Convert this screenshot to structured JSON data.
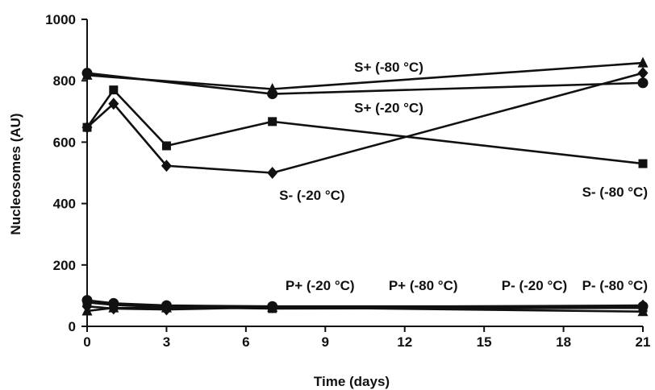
{
  "chart_data": {
    "type": "line",
    "title": "",
    "xlabel": "Time (days)",
    "ylabel": "Nucleosomes (AU)",
    "xlim": [
      0,
      21
    ],
    "ylim": [
      0,
      1000
    ],
    "xticks": [
      0,
      3,
      6,
      9,
      12,
      15,
      18,
      21
    ],
    "yticks": [
      0,
      200,
      400,
      600,
      800,
      1000
    ],
    "xtick_labels": [
      "0",
      "3",
      "6",
      "9",
      "12",
      "15",
      "18",
      "21"
    ],
    "ytick_labels": [
      "0",
      "200",
      "400",
      "600",
      "800",
      "1000"
    ],
    "grid": false,
    "legend": "none",
    "series": [
      {
        "name": "S+ (-80 °C)",
        "marker": "triangle",
        "x": [
          0,
          7,
          21
        ],
        "y": [
          818,
          773,
          858
        ]
      },
      {
        "name": "S+ (-20 °C)",
        "marker": "circle",
        "x": [
          0,
          7,
          21
        ],
        "y": [
          825,
          757,
          793
        ]
      },
      {
        "name": "S- (-80 °C)",
        "marker": "square",
        "x": [
          0,
          1,
          3,
          7,
          21
        ],
        "y": [
          648,
          770,
          588,
          667,
          530
        ]
      },
      {
        "name": "S- (-20 °C)",
        "marker": "diamond",
        "x": [
          0,
          1,
          3,
          7,
          21
        ],
        "y": [
          648,
          725,
          523,
          500,
          825
        ]
      },
      {
        "name": "P+ (-20 °C)",
        "marker": "circle",
        "x": [
          0,
          1,
          3,
          7,
          21
        ],
        "y": [
          85,
          75,
          68,
          65,
          65
        ]
      },
      {
        "name": "P+ (-80 °C)",
        "marker": "square",
        "x": [
          0,
          1,
          3,
          7,
          21
        ],
        "y": [
          78,
          70,
          62,
          58,
          60
        ]
      },
      {
        "name": "P- (-20 °C)",
        "marker": "diamond",
        "x": [
          0,
          1,
          3,
          7,
          21
        ],
        "y": [
          65,
          58,
          55,
          62,
          68
        ]
      },
      {
        "name": "P- (-80 °C)",
        "marker": "triangle",
        "x": [
          0,
          1,
          3,
          7,
          21
        ],
        "y": [
          50,
          60,
          60,
          62,
          48
        ]
      }
    ],
    "annotations": [
      {
        "text": "S+ (-80 °C)",
        "x": 11.4,
        "y": 845
      },
      {
        "text": "S+ (-20 °C)",
        "x": 11.4,
        "y": 712
      },
      {
        "text": "S- (-20 °C)",
        "x": 8.5,
        "y": 428
      },
      {
        "text": "S- (-80 °C)",
        "x": 21.0,
        "y": 438
      },
      {
        "text": "P+ (-20 °C)",
        "x": 8.8,
        "y": 134
      },
      {
        "text": "P+ (-80 °C)",
        "x": 12.7,
        "y": 134
      },
      {
        "text": "P- (-20 °C)",
        "x": 16.9,
        "y": 134
      },
      {
        "text": "P- (-80 °C)",
        "x": 21.0,
        "y": 134
      }
    ]
  }
}
